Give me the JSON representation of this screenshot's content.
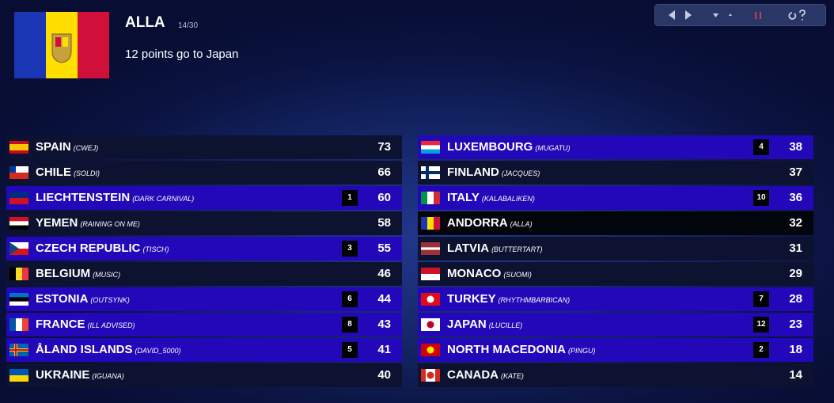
{
  "header": {
    "voter": "ALLA",
    "progress": "14/30",
    "message": "12 points go to Japan"
  },
  "scoreboard": {
    "columns": [
      {
        "rows": [
          {
            "country": "SPAIN",
            "artist": "(CWEJ)",
            "total": 73
          },
          {
            "country": "CHILE",
            "artist": "(SOLDI)",
            "total": 66
          },
          {
            "country": "LIECHTENSTEIN",
            "artist": "(DARK CARNIVAL)",
            "points": 1,
            "total": 60
          },
          {
            "country": "YEMEN",
            "artist": "(RAINING ON ME)",
            "total": 58
          },
          {
            "country": "CZECH REPUBLIC",
            "artist": "(TISCH)",
            "points": 3,
            "total": 55
          },
          {
            "country": "BELGIUM",
            "artist": "(MUSIC)",
            "total": 46
          },
          {
            "country": "ESTONIA",
            "artist": "(OUTSYNK)",
            "points": 6,
            "total": 44
          },
          {
            "country": "FRANCE",
            "artist": "(ILL ADVISED)",
            "points": 8,
            "total": 43
          },
          {
            "country": "ÅLAND ISLANDS",
            "artist": "(DAVID_5000)",
            "points": 5,
            "total": 41
          },
          {
            "country": "UKRAINE",
            "artist": "(IGUANA)",
            "total": 40
          }
        ]
      },
      {
        "rows": [
          {
            "country": "LUXEMBOURG",
            "artist": "(MUGATU)",
            "points": 4,
            "total": 38
          },
          {
            "country": "FINLAND",
            "artist": "(JACQUES)",
            "total": 37
          },
          {
            "country": "ITALY",
            "artist": "(KALABALIKEN)",
            "points": 10,
            "total": 36
          },
          {
            "country": "ANDORRA",
            "artist": "(ALLA)",
            "total": 32
          },
          {
            "country": "LATVIA",
            "artist": "(BUTTERTART)",
            "total": 31
          },
          {
            "country": "MONACO",
            "artist": "(SUOMI)",
            "total": 29
          },
          {
            "country": "TURKEY",
            "artist": "(RHYTHMBARBICAN)",
            "points": 7,
            "total": 28
          },
          {
            "country": "JAPAN",
            "artist": "(LUCILLE)",
            "points": 12,
            "total": 23
          },
          {
            "country": "NORTH MACEDONIA",
            "artist": "(PINGU)",
            "points": 2,
            "total": 18
          },
          {
            "country": "CANADA",
            "artist": "(KATE)",
            "total": 14
          }
        ]
      }
    ]
  }
}
